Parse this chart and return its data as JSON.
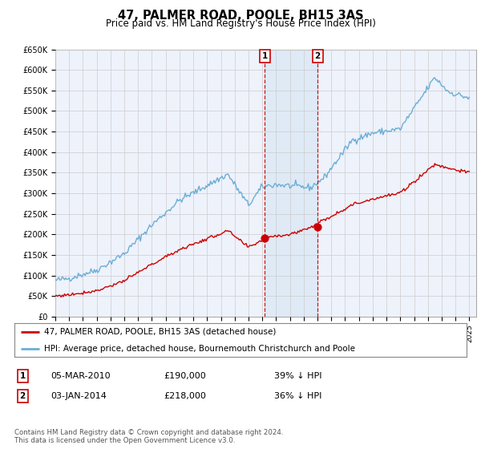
{
  "title": "47, PALMER ROAD, POOLE, BH15 3AS",
  "subtitle": "Price paid vs. HM Land Registry's House Price Index (HPI)",
  "ylim": [
    0,
    650000
  ],
  "yticks": [
    0,
    50000,
    100000,
    150000,
    200000,
    250000,
    300000,
    350000,
    400000,
    450000,
    500000,
    550000,
    600000,
    650000
  ],
  "ytick_labels": [
    "£0",
    "£50K",
    "£100K",
    "£150K",
    "£200K",
    "£250K",
    "£300K",
    "£350K",
    "£400K",
    "£450K",
    "£500K",
    "£550K",
    "£600K",
    "£650K"
  ],
  "background_color": "#ffffff",
  "plot_bg_color": "#eef2fb",
  "grid_color": "#cccccc",
  "shade_color": "#dce8f5",
  "legend1_label": "47, PALMER ROAD, POOLE, BH15 3AS (detached house)",
  "legend2_label": "HPI: Average price, detached house, Bournemouth Christchurch and Poole",
  "transaction1_date": "05-MAR-2010",
  "transaction1_price": "£190,000",
  "transaction1_hpi": "39% ↓ HPI",
  "transaction2_date": "03-JAN-2014",
  "transaction2_price": "£218,000",
  "transaction2_hpi": "36% ↓ HPI",
  "footer": "Contains HM Land Registry data © Crown copyright and database right 2024.\nThis data is licensed under the Open Government Licence v3.0.",
  "hpi_color": "#6baed6",
  "price_color": "#cc0000",
  "vline_color": "#cc0000",
  "marker1_x": 2010.17,
  "marker2_x": 2014.0,
  "price_paid_values": [
    190000,
    218000
  ],
  "xlim_start": 1995,
  "xlim_end": 2025.5
}
